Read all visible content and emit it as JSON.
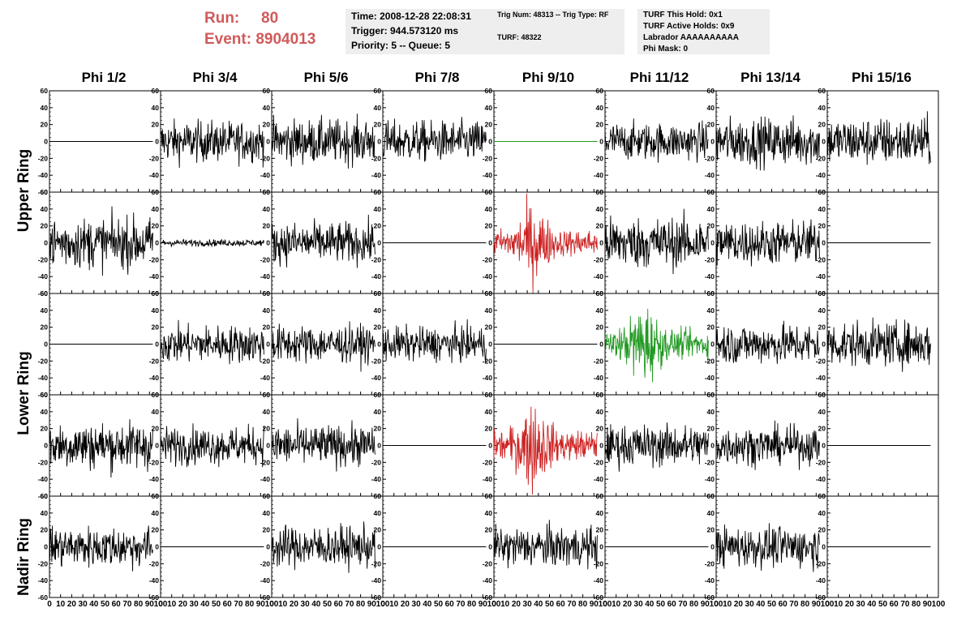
{
  "header": {
    "run_label": "Run:",
    "run_value": "80",
    "event_label": "Event:",
    "event_value": "8904013",
    "time": "Time: 2008-12-28 22:08:31",
    "trigger": "Trigger: 944.573120 ms",
    "priority": "Priority: 5 -- Queue: 5",
    "trig_num": "Trig Num: 48313 -- Trig Type: RF",
    "turf": "TURF: 48322",
    "turf_hold": "TURF This Hold: 0x1",
    "turf_active": "TURF Active Holds: 0x9",
    "labrador": "Labrador AAAAAAAAAA",
    "phi_mask": "Phi Mask: 0"
  },
  "columns": [
    "Phi 1/2",
    "Phi 3/4",
    "Phi 5/6",
    "Phi 7/8",
    "Phi 9/10",
    "Phi 11/12",
    "Phi 13/14",
    "Phi 15/16"
  ],
  "ring_labels": {
    "upper": "Upper Ring",
    "lower": "Lower Ring",
    "nadir": "Nadir Ring"
  },
  "colors": {
    "run_text": "#d05a5a",
    "info_bg": "#eeeeee",
    "trace": "#000000",
    "triggered": "#cc2222",
    "active": "#229922"
  },
  "chart_data": {
    "type": "line",
    "xlim": [
      0,
      100
    ],
    "ylim": [
      -60,
      60
    ],
    "x_ticks": [
      0,
      10,
      20,
      30,
      40,
      50,
      60,
      70,
      80,
      90,
      100
    ],
    "x_tick_labels": [
      "0",
      "10",
      "20",
      "30",
      "40",
      "50",
      "60",
      "70",
      "80",
      "90",
      "100"
    ],
    "y_ticks": [
      -60,
      -40,
      -20,
      0,
      20,
      40,
      60
    ],
    "y_tick_labels": [
      "-60",
      "-40",
      "-20",
      "0",
      "20",
      "40",
      "60"
    ],
    "x_end": 93,
    "panels": [
      [
        {
          "mode": "flat",
          "color": "black"
        },
        {
          "mode": "noise",
          "color": "black",
          "amp": 12
        },
        {
          "mode": "noise",
          "color": "black",
          "amp": 13
        },
        {
          "mode": "noise",
          "color": "black",
          "amp": 12
        },
        {
          "mode": "flat",
          "color": "green"
        },
        {
          "mode": "noise",
          "color": "black",
          "amp": 11
        },
        {
          "mode": "noise",
          "color": "black",
          "amp": 14
        },
        {
          "mode": "noise",
          "color": "black",
          "amp": 14
        }
      ],
      [
        {
          "mode": "noise",
          "color": "black",
          "amp": 15
        },
        {
          "mode": "noise",
          "color": "black",
          "amp": 2
        },
        {
          "mode": "noise",
          "color": "black",
          "amp": 12
        },
        {
          "mode": "flat",
          "color": "black"
        },
        {
          "mode": "pulse",
          "color": "red",
          "amp": 14
        },
        {
          "mode": "noise",
          "color": "black",
          "amp": 15
        },
        {
          "mode": "noise",
          "color": "black",
          "amp": 13
        },
        {
          "mode": "flat",
          "color": "black"
        }
      ],
      [
        {
          "mode": "flat",
          "color": "black"
        },
        {
          "mode": "noise",
          "color": "black",
          "amp": 11
        },
        {
          "mode": "noise",
          "color": "black",
          "amp": 11
        },
        {
          "mode": "noise",
          "color": "black",
          "amp": 10
        },
        {
          "mode": "flat",
          "color": "black"
        },
        {
          "mode": "pulse",
          "color": "green",
          "amp": 15
        },
        {
          "mode": "noise",
          "color": "black",
          "amp": 12
        },
        {
          "mode": "noise",
          "color": "black",
          "amp": 13
        }
      ],
      [
        {
          "mode": "noise",
          "color": "black",
          "amp": 14
        },
        {
          "mode": "noise",
          "color": "black",
          "amp": 11
        },
        {
          "mode": "noise",
          "color": "black",
          "amp": 12
        },
        {
          "mode": "flat",
          "color": "black"
        },
        {
          "mode": "pulse",
          "color": "red",
          "amp": 16
        },
        {
          "mode": "noise",
          "color": "black",
          "amp": 12
        },
        {
          "mode": "noise",
          "color": "black",
          "amp": 11
        },
        {
          "mode": "flat",
          "color": "black"
        }
      ],
      [
        {
          "mode": "noise",
          "color": "black",
          "amp": 12
        },
        {
          "mode": "flat",
          "color": "black"
        },
        {
          "mode": "noise",
          "color": "black",
          "amp": 12
        },
        {
          "mode": "flat",
          "color": "black"
        },
        {
          "mode": "noise",
          "color": "black",
          "amp": 12
        },
        {
          "mode": "flat",
          "color": "black"
        },
        {
          "mode": "noise",
          "color": "black",
          "amp": 12
        },
        {
          "mode": "flat",
          "color": "black"
        }
      ]
    ]
  }
}
